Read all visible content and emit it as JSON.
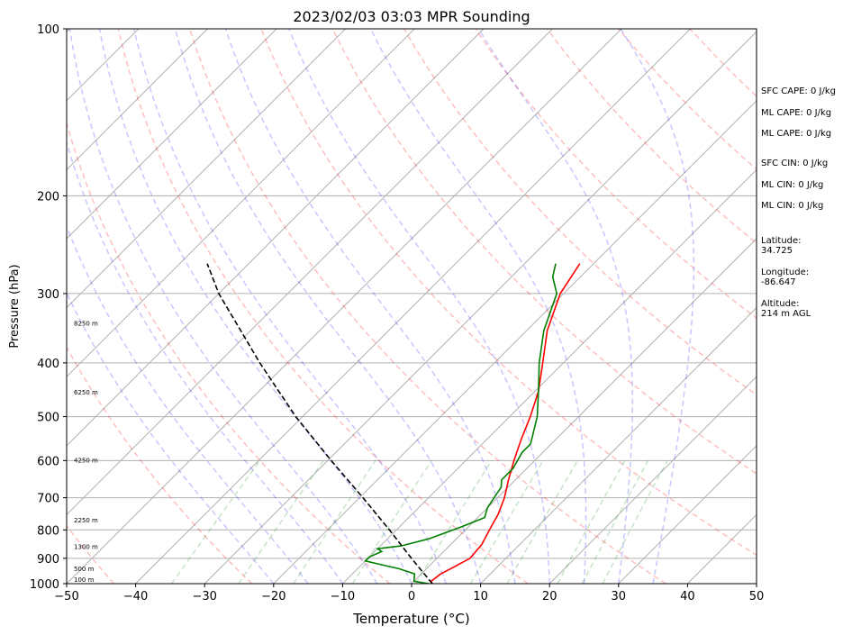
{
  "chart_data": {
    "type": "line",
    "title": "2023/02/03 03:03 MPR Sounding",
    "xlabel": "Temperature (°C)",
    "ylabel": "Pressure (hPa)",
    "xlim": [
      -50,
      50
    ],
    "ylim": [
      1000,
      100
    ],
    "y_scale": "log",
    "skew_t": true,
    "grid": true,
    "x_ticks": [
      "−50",
      "−40",
      "−30",
      "−20",
      "−10",
      "0",
      "10",
      "20",
      "30",
      "40",
      "50"
    ],
    "y_ticks": [
      "100",
      "200",
      "300",
      "400",
      "500",
      "600",
      "700",
      "800",
      "900",
      "1000"
    ],
    "height_labels": [
      {
        "label": "100 m",
        "pressure": 986
      },
      {
        "label": "500 m",
        "pressure": 942
      },
      {
        "label": "1300 m",
        "pressure": 860
      },
      {
        "label": "2250 m",
        "pressure": 770
      },
      {
        "label": "4250 m",
        "pressure": 600
      },
      {
        "label": "6250 m",
        "pressure": 453
      },
      {
        "label": "8250 m",
        "pressure": 340
      }
    ],
    "series": [
      {
        "role": "temperature",
        "color": "#ff0000",
        "points": [
          [
            3,
            1000
          ],
          [
            2.5,
            990
          ],
          [
            2.8,
            960
          ],
          [
            3.5,
            940
          ],
          [
            4.8,
            900
          ],
          [
            4.5,
            850
          ],
          [
            3.5,
            800
          ],
          [
            2.5,
            750
          ],
          [
            1,
            700
          ],
          [
            -1,
            650
          ],
          [
            -3,
            600
          ],
          [
            -5,
            550
          ],
          [
            -7,
            500
          ],
          [
            -9.5,
            450
          ],
          [
            -13,
            400
          ],
          [
            -17,
            350
          ],
          [
            -20.5,
            300
          ],
          [
            -22,
            265
          ]
        ]
      },
      {
        "role": "dewpoint",
        "color": "#008000",
        "points": [
          [
            2.5,
            1000
          ],
          [
            0,
            990
          ],
          [
            -1,
            960
          ],
          [
            -4,
            940
          ],
          [
            -7,
            925
          ],
          [
            -10,
            910
          ],
          [
            -10,
            895
          ],
          [
            -9,
            875
          ],
          [
            -10,
            865
          ],
          [
            -7,
            855
          ],
          [
            -4,
            830
          ],
          [
            -1,
            790
          ],
          [
            1,
            760
          ],
          [
            0,
            730
          ],
          [
            -0.5,
            700
          ],
          [
            -1,
            670
          ],
          [
            -2,
            650
          ],
          [
            -2,
            620
          ],
          [
            -3,
            580
          ],
          [
            -3,
            560
          ],
          [
            -6,
            500
          ],
          [
            -9.5,
            450
          ],
          [
            -13.5,
            400
          ],
          [
            -17.5,
            350
          ],
          [
            -21,
            300
          ],
          [
            -24,
            280
          ],
          [
            -25.5,
            265
          ]
        ]
      },
      {
        "role": "parcel",
        "color": "#000000",
        "style": "dashed",
        "points": [
          [
            3,
            1000
          ],
          [
            -3.7,
            900
          ],
          [
            -11,
            800
          ],
          [
            -19.5,
            700
          ],
          [
            -29.5,
            600
          ],
          [
            -41,
            500
          ],
          [
            -54,
            400
          ],
          [
            -70,
            300
          ],
          [
            -76,
            265
          ]
        ]
      }
    ],
    "dry_adiabats_theta_K": [
      230,
      250,
      270,
      290,
      310,
      330,
      350,
      370,
      390,
      410,
      430,
      450,
      470,
      490,
      510
    ],
    "moist_adiabats_start_C": [
      -20,
      -15,
      -10,
      -5,
      0,
      5,
      10,
      15,
      20,
      25,
      30,
      35
    ],
    "mixing_ratios_gkg": [
      0.2,
      0.5,
      1,
      2,
      4,
      7,
      10,
      16,
      20,
      24
    ]
  },
  "side_info": [
    {
      "text": "SFC CAPE: 0 J/kg",
      "y": 100
    },
    {
      "text": "ML CAPE: 0 J/kg",
      "y": 124
    },
    {
      "text": "ML CAPE: 0 J/kg",
      "y": 147
    },
    {
      "text": "SFC CIN: 0 J/kg",
      "y": 180
    },
    {
      "text": "ML CIN: 0 J/kg",
      "y": 204
    },
    {
      "text": "ML CIN: 0 J/kg",
      "y": 227
    },
    {
      "text": "Latitude:\n34.725",
      "y": 266
    },
    {
      "text": "Longitude:\n-86.647",
      "y": 301
    },
    {
      "text": "Altitude:\n214 m AGL",
      "y": 336
    }
  ]
}
